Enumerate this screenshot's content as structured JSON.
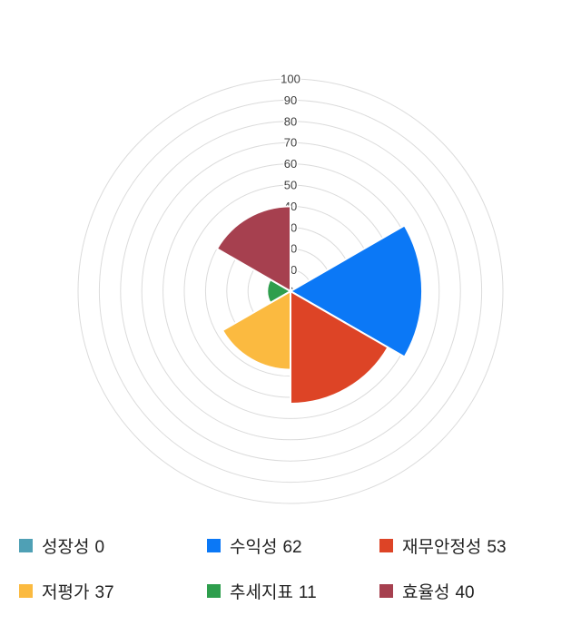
{
  "chart_data": {
    "type": "polar-area",
    "categories": [
      "성장성",
      "수익성",
      "재무안정성",
      "저평가",
      "추세지표",
      "효율성"
    ],
    "values": [
      0,
      62,
      53,
      37,
      11,
      40
    ],
    "colors": [
      "#4FA0B5",
      "#0B78F6",
      "#DD4426",
      "#FBBA40",
      "#2E9E4D",
      "#A6404F"
    ],
    "rmax": 100,
    "ring_step": 10,
    "tick_labels": [
      "0",
      "10",
      "20",
      "30",
      "40",
      "50",
      "60",
      "70",
      "80",
      "90",
      "100"
    ],
    "start_angle_deg": 0,
    "sector_span_deg": 60,
    "direction": "clockwise",
    "grid": true,
    "grid_color": "#DBDBDB",
    "tick_color": "#404040",
    "sector_stroke_color": "#FFFFFF",
    "legend_position": "bottom",
    "title": "",
    "xlabel": "",
    "ylabel": ""
  }
}
